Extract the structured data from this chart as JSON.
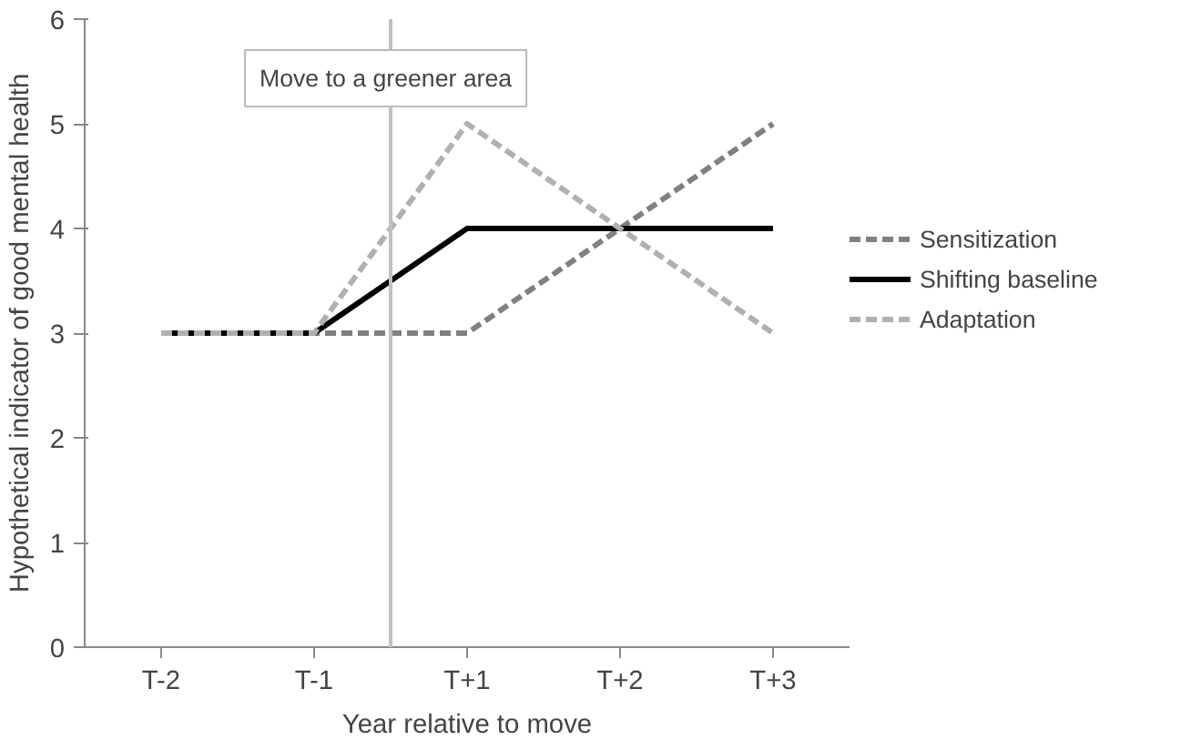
{
  "chart_data": {
    "type": "line",
    "xlabel": "Year relative to move",
    "ylabel": "Hypothetical indicator of good mental health",
    "categories": [
      "T-2",
      "T-1",
      "T+1",
      "T+2",
      "T+3"
    ],
    "series": [
      {
        "name": "Sensitization",
        "color": "#808080",
        "line_style": "dashed",
        "values": [
          3,
          3,
          3,
          4,
          5
        ]
      },
      {
        "name": "Shifting baseline",
        "color": "#000000",
        "line_style": "solid",
        "values": [
          3,
          3,
          4,
          4,
          4
        ]
      },
      {
        "name": "Adaptation",
        "color": "#b0b0b0",
        "line_style": "dashed",
        "values": [
          3,
          3,
          5,
          4,
          3
        ]
      }
    ],
    "ylim": [
      0,
      6
    ],
    "yticks": [
      0,
      1,
      2,
      3,
      4,
      5,
      6
    ],
    "annotations": [
      "Move to a greener area"
    ],
    "legend": "right"
  }
}
